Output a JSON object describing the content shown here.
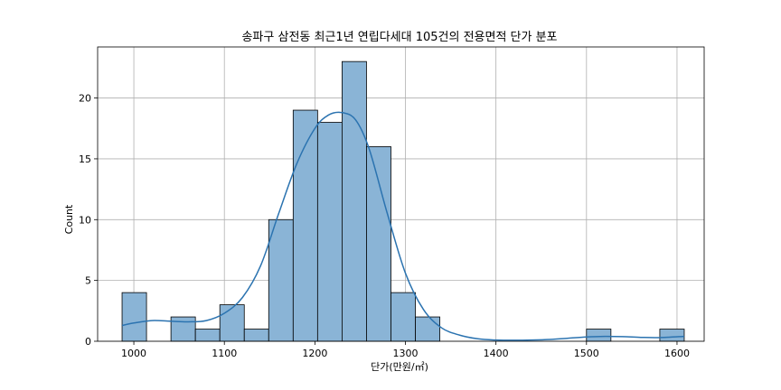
{
  "chart_data": {
    "type": "bar",
    "subtype": "histogram",
    "title": "송파구 삼전동 최근1년 연립다세대 105건의 전용면적 단가 분포",
    "xlabel": "단가(만원/㎡)",
    "ylabel": "Count",
    "xlim": [
      960,
      1630
    ],
    "ylim": [
      0,
      24.2
    ],
    "grid": true,
    "xticks": [
      1000,
      1100,
      1200,
      1300,
      1400,
      1500,
      1600
    ],
    "yticks": [
      0,
      5,
      10,
      15,
      20
    ],
    "bin_edges": [
      987,
      1014,
      1041,
      1068,
      1095,
      1122,
      1149,
      1176,
      1203,
      1230,
      1257,
      1284,
      1311,
      1338,
      1365,
      1392,
      1419,
      1446,
      1473,
      1500,
      1527,
      1554,
      1581,
      1608
    ],
    "counts": [
      4,
      0,
      2,
      1,
      3,
      1,
      10,
      19,
      18,
      23,
      16,
      4,
      2,
      0,
      0,
      0,
      0,
      0,
      0,
      1,
      0,
      0,
      1
    ],
    "kde": {
      "x": [
        987,
        1000,
        1020,
        1040,
        1060,
        1080,
        1100,
        1120,
        1140,
        1160,
        1180,
        1200,
        1215,
        1230,
        1245,
        1260,
        1280,
        1300,
        1320,
        1340,
        1360,
        1380,
        1400,
        1420,
        1440,
        1460,
        1480,
        1500,
        1520,
        1540,
        1560,
        1580,
        1608
      ],
      "y": [
        1.3,
        1.5,
        1.7,
        1.65,
        1.6,
        1.7,
        2.3,
        3.6,
        6.2,
        10.5,
        14.6,
        17.5,
        18.6,
        18.8,
        18.2,
        15.8,
        10.5,
        5.6,
        2.6,
        1.1,
        0.5,
        0.2,
        0.1,
        0.08,
        0.1,
        0.15,
        0.25,
        0.35,
        0.4,
        0.38,
        0.32,
        0.3,
        0.4
      ]
    }
  },
  "colors": {
    "bar": "#8ab4d6",
    "kde": "#2b73b0"
  }
}
